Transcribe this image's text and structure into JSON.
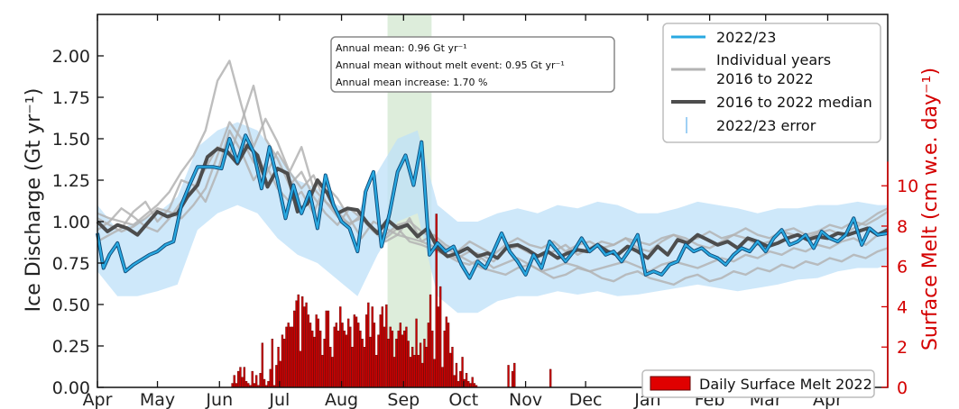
{
  "chart_data": {
    "type": "line",
    "xlabel": "",
    "ylabel": "Ice Discharge (Gt yr⁻¹)",
    "ylabel_right": "Surface Melt (cm w.e. day⁻¹)",
    "x_tick_labels": [
      "Apr",
      "May",
      "Jun",
      "Jul",
      "Aug",
      "Sep",
      "Oct",
      "Nov",
      "Dec",
      "Jan",
      "Feb",
      "Mar",
      "Apr"
    ],
    "y_ticks": [
      "0.00",
      "0.25",
      "0.50",
      "0.75",
      "1.00",
      "1.25",
      "1.50",
      "1.75",
      "2.00"
    ],
    "y_ticks_right": [
      "0",
      "2",
      "4",
      "6",
      "8",
      "10"
    ],
    "ylim": [
      0,
      2.25
    ],
    "ylim_right": [
      0,
      18.5
    ],
    "xlim_days": [
      0,
      395
    ],
    "highlight_window": {
      "start_day": 145,
      "end_day": 167,
      "color": "#cfe6cc"
    },
    "annotation": {
      "line1": "Annual mean: 0.96  Gt yr⁻¹",
      "line2": "Annual mean without melt event: 0.95  Gt yr⁻¹",
      "line3": "Annual mean increase: 1.70 %"
    },
    "legend": {
      "placement": "top-right",
      "items": [
        "2022/23",
        "Individual years",
        "2016 to 2022",
        "2016 to 2022 median",
        "2022/23 error"
      ]
    },
    "melt_legend": {
      "label": "Daily Surface Melt 2022",
      "placement": "bottom-right"
    },
    "colors": {
      "series_2022": "#29a9e1",
      "error": "#9fd0f4",
      "individual": "#b3b3b3",
      "median": "#4d4d4d",
      "melt": "#cc0000"
    },
    "series": [
      {
        "name": "2022/23",
        "x": [
          0,
          3,
          6,
          10,
          14,
          18,
          22,
          26,
          30,
          34,
          38,
          42,
          46,
          50,
          54,
          58,
          62,
          66,
          70,
          74,
          78,
          82,
          86,
          90,
          94,
          98,
          102,
          106,
          110,
          114,
          118,
          122,
          126,
          130,
          134,
          138,
          142,
          146,
          150,
          154,
          158,
          162,
          166,
          170,
          174,
          178,
          182,
          186,
          190,
          194,
          198,
          202,
          206,
          210,
          214,
          218,
          222,
          226,
          230,
          234,
          238,
          242,
          246,
          250,
          254,
          258,
          262,
          266,
          270,
          274,
          278,
          282,
          286,
          290,
          294,
          298,
          302,
          306,
          310,
          314,
          318,
          322,
          326,
          330,
          334,
          338,
          342,
          346,
          350,
          354,
          358,
          362,
          366,
          370,
          374,
          378,
          382,
          386,
          390,
          395
        ],
        "y": [
          0.93,
          0.72,
          0.8,
          0.87,
          0.7,
          0.74,
          0.77,
          0.8,
          0.82,
          0.86,
          0.88,
          1.1,
          1.22,
          1.33,
          1.33,
          1.33,
          1.32,
          1.5,
          1.36,
          1.52,
          1.42,
          1.2,
          1.45,
          1.25,
          1.02,
          1.22,
          1.05,
          1.18,
          0.96,
          1.28,
          1.1,
          1.0,
          0.96,
          0.82,
          1.18,
          1.3,
          0.85,
          1.05,
          1.3,
          1.4,
          1.22,
          1.48,
          0.8,
          0.87,
          0.82,
          0.85,
          0.74,
          0.66,
          0.76,
          0.72,
          0.82,
          0.93,
          0.82,
          0.76,
          0.68,
          0.8,
          0.72,
          0.88,
          0.82,
          0.76,
          0.82,
          0.9,
          0.82,
          0.86,
          0.8,
          0.82,
          0.76,
          0.83,
          0.92,
          0.68,
          0.7,
          0.68,
          0.74,
          0.76,
          0.86,
          0.82,
          0.84,
          0.8,
          0.78,
          0.74,
          0.8,
          0.84,
          0.82,
          0.88,
          0.82,
          0.9,
          0.95,
          0.86,
          0.88,
          0.92,
          0.84,
          0.94,
          0.9,
          0.88,
          0.92,
          1.02,
          0.86,
          0.96,
          0.92,
          0.93
        ]
      },
      {
        "name": "2016 to 2022 median",
        "x": [
          0,
          5,
          10,
          15,
          20,
          25,
          30,
          35,
          40,
          45,
          50,
          55,
          60,
          65,
          70,
          75,
          80,
          85,
          90,
          95,
          100,
          105,
          110,
          115,
          120,
          125,
          130,
          135,
          140,
          145,
          150,
          155,
          160,
          165,
          170,
          175,
          180,
          185,
          190,
          195,
          200,
          205,
          210,
          215,
          220,
          225,
          230,
          235,
          240,
          245,
          250,
          255,
          260,
          265,
          270,
          275,
          280,
          285,
          290,
          295,
          300,
          305,
          310,
          315,
          320,
          325,
          330,
          335,
          340,
          345,
          350,
          355,
          360,
          365,
          370,
          375,
          380,
          385,
          390,
          395
        ],
        "y": [
          1.0,
          0.94,
          0.98,
          0.96,
          0.92,
          0.99,
          1.06,
          1.03,
          1.05,
          1.15,
          1.22,
          1.39,
          1.44,
          1.42,
          1.35,
          1.46,
          1.4,
          1.21,
          1.32,
          1.29,
          1.06,
          1.11,
          1.25,
          1.17,
          1.05,
          1.08,
          1.07,
          0.99,
          0.93,
          1.01,
          0.96,
          0.98,
          0.91,
          0.96,
          0.84,
          0.79,
          0.81,
          0.84,
          0.79,
          0.81,
          0.78,
          0.85,
          0.86,
          0.83,
          0.79,
          0.82,
          0.78,
          0.81,
          0.83,
          0.82,
          0.86,
          0.82,
          0.8,
          0.85,
          0.82,
          0.78,
          0.85,
          0.8,
          0.89,
          0.87,
          0.92,
          0.89,
          0.86,
          0.88,
          0.84,
          0.9,
          0.88,
          0.85,
          0.87,
          0.9,
          0.92,
          0.89,
          0.91,
          0.9,
          0.93,
          0.92,
          0.94,
          0.96,
          0.92,
          0.95
        ]
      }
    ],
    "individual_years": [
      {
        "x": [
          0,
          6,
          12,
          18,
          24,
          30,
          36,
          42,
          48,
          54,
          60,
          66,
          72,
          78,
          84,
          90,
          96,
          102,
          108,
          114,
          120,
          126,
          132,
          138,
          144,
          150,
          156,
          162,
          168,
          174,
          180,
          186,
          192,
          198,
          204,
          210,
          216,
          222,
          228,
          234,
          240,
          246,
          252,
          258,
          264,
          270,
          276,
          282,
          288,
          294,
          300,
          306,
          312,
          318,
          324,
          330,
          336,
          342,
          348,
          354,
          360,
          366,
          372,
          378,
          384,
          390,
          395
        ],
        "y": [
          1.05,
          1.02,
          1.0,
          0.98,
          1.04,
          1.1,
          1.18,
          1.3,
          1.4,
          1.55,
          1.85,
          1.97,
          1.7,
          1.45,
          1.62,
          1.48,
          1.3,
          1.45,
          1.2,
          1.12,
          1.03,
          0.99,
          1.02,
          0.94,
          0.88,
          0.92,
          0.9,
          0.88,
          0.85,
          0.8,
          0.78,
          0.82,
          0.8,
          0.76,
          0.83,
          0.85,
          0.81,
          0.79,
          0.82,
          0.86,
          0.8,
          0.84,
          0.88,
          0.86,
          0.9,
          0.84,
          0.82,
          0.88,
          0.92,
          0.9,
          0.86,
          0.84,
          0.88,
          0.92,
          0.9,
          0.86,
          0.88,
          0.94,
          0.92,
          0.9,
          0.93,
          0.95,
          0.92,
          0.96,
          1.0,
          1.05,
          1.08
        ]
      },
      {
        "x": [
          0,
          6,
          12,
          18,
          24,
          30,
          36,
          42,
          48,
          54,
          60,
          66,
          72,
          78,
          84,
          90,
          96,
          102,
          108,
          114,
          120,
          126,
          132,
          138,
          144,
          150,
          156,
          162,
          168,
          174,
          180,
          186,
          192,
          198,
          204,
          210,
          216,
          222,
          228,
          234,
          240,
          246,
          252,
          258,
          264,
          270,
          276,
          282,
          288,
          294,
          300,
          306,
          312,
          318,
          324,
          330,
          336,
          342,
          348,
          354,
          360,
          366,
          372,
          378,
          384,
          390,
          395
        ],
        "y": [
          0.95,
          1.0,
          1.08,
          1.03,
          0.97,
          0.94,
          1.02,
          1.12,
          1.2,
          1.32,
          1.45,
          1.4,
          1.6,
          1.82,
          1.5,
          1.38,
          1.22,
          1.3,
          1.15,
          1.05,
          0.98,
          1.08,
          1.02,
          0.95,
          0.9,
          0.96,
          0.88,
          0.86,
          0.83,
          0.8,
          0.76,
          0.74,
          0.78,
          0.72,
          0.75,
          0.78,
          0.74,
          0.7,
          0.72,
          0.75,
          0.73,
          0.7,
          0.72,
          0.74,
          0.76,
          0.73,
          0.7,
          0.74,
          0.76,
          0.74,
          0.72,
          0.75,
          0.78,
          0.76,
          0.8,
          0.78,
          0.82,
          0.8,
          0.84,
          0.82,
          0.86,
          0.84,
          0.88,
          0.9,
          0.86,
          0.92,
          0.95
        ]
      },
      {
        "x": [
          0,
          6,
          12,
          18,
          24,
          30,
          36,
          42,
          48,
          54,
          60,
          66,
          72,
          78,
          84,
          90,
          96,
          102,
          108,
          114,
          120,
          126,
          132,
          138,
          144,
          150,
          156,
          162,
          168,
          174,
          180,
          186,
          192,
          198,
          204,
          210,
          216,
          222,
          228,
          234,
          240,
          246,
          252,
          258,
          264,
          270,
          276,
          282,
          288,
          294,
          300,
          306,
          312,
          318,
          324,
          330,
          336,
          342,
          348,
          354,
          360,
          366,
          372,
          378,
          384,
          390,
          395
        ],
        "y": [
          0.88,
          0.92,
          0.96,
          1.06,
          1.12,
          1.0,
          1.08,
          1.25,
          1.22,
          1.12,
          1.3,
          1.55,
          1.42,
          1.25,
          1.35,
          1.2,
          1.12,
          1.18,
          1.05,
          1.22,
          1.14,
          1.02,
          0.9,
          1.0,
          0.96,
          0.92,
          1.02,
          0.88,
          0.92,
          0.86,
          0.82,
          0.88,
          0.84,
          0.8,
          0.86,
          0.9,
          0.86,
          0.84,
          0.88,
          0.82,
          0.86,
          0.88,
          0.84,
          0.86,
          0.9,
          0.88,
          0.86,
          0.9,
          0.92,
          0.88,
          0.9,
          0.94,
          0.9,
          0.92,
          0.96,
          0.92,
          0.9,
          0.94,
          0.96,
          0.92,
          0.94,
          0.98,
          0.96,
          1.0,
          0.98,
          1.02,
          1.06
        ]
      },
      {
        "x": [
          0,
          6,
          12,
          18,
          24,
          30,
          36,
          42,
          48,
          54,
          60,
          66,
          72,
          78,
          84,
          90,
          96,
          102,
          108,
          114,
          120,
          126,
          132,
          138,
          144,
          150,
          156,
          162,
          168,
          174,
          180,
          186,
          192,
          198,
          204,
          210,
          216,
          222,
          228,
          234,
          240,
          246,
          252,
          258,
          264,
          270,
          276,
          282,
          288,
          294,
          300,
          306,
          312,
          318,
          324,
          330,
          336,
          342,
          348,
          354,
          360,
          366,
          372,
          378,
          384,
          390,
          395
        ],
        "y": [
          1.02,
          0.98,
          0.94,
          0.97,
          1.02,
          1.08,
          1.06,
          1.02,
          1.1,
          1.2,
          1.4,
          1.6,
          1.5,
          1.36,
          1.28,
          1.42,
          1.3,
          1.2,
          1.28,
          1.12,
          1.06,
          0.98,
          1.04,
          0.96,
          0.92,
          0.98,
          1.0,
          0.94,
          0.9,
          0.84,
          0.8,
          0.76,
          0.72,
          0.7,
          0.68,
          0.72,
          0.74,
          0.7,
          0.66,
          0.68,
          0.72,
          0.7,
          0.66,
          0.64,
          0.68,
          0.7,
          0.66,
          0.64,
          0.62,
          0.66,
          0.68,
          0.64,
          0.66,
          0.7,
          0.68,
          0.72,
          0.7,
          0.74,
          0.72,
          0.76,
          0.74,
          0.78,
          0.76,
          0.8,
          0.78,
          0.82,
          0.84
        ]
      }
    ],
    "error_band": {
      "x": [
        0,
        10,
        20,
        30,
        40,
        50,
        60,
        70,
        80,
        90,
        100,
        110,
        120,
        130,
        140,
        150,
        160,
        170,
        180,
        190,
        200,
        210,
        220,
        230,
        240,
        250,
        260,
        270,
        280,
        290,
        300,
        310,
        320,
        330,
        340,
        350,
        360,
        370,
        380,
        390,
        395
      ],
      "upper": [
        1.1,
        0.95,
        1.0,
        1.05,
        1.15,
        1.45,
        1.55,
        1.6,
        1.55,
        1.4,
        1.25,
        1.2,
        1.1,
        1.05,
        1.3,
        1.5,
        1.55,
        1.1,
        1.0,
        1.0,
        1.05,
        1.08,
        1.05,
        1.1,
        1.08,
        1.12,
        1.1,
        1.05,
        1.05,
        1.08,
        1.12,
        1.1,
        1.08,
        1.05,
        1.08,
        1.08,
        1.1,
        1.1,
        1.12,
        1.1,
        1.1
      ],
      "lower": [
        0.7,
        0.55,
        0.55,
        0.58,
        0.62,
        0.95,
        1.05,
        1.1,
        1.05,
        0.9,
        0.8,
        0.75,
        0.65,
        0.55,
        0.8,
        1.0,
        1.05,
        0.55,
        0.45,
        0.45,
        0.52,
        0.55,
        0.55,
        0.58,
        0.56,
        0.58,
        0.55,
        0.56,
        0.58,
        0.6,
        0.62,
        0.6,
        0.58,
        0.6,
        0.62,
        0.65,
        0.66,
        0.7,
        0.72,
        0.72,
        0.74
      ]
    },
    "melt_bars": {
      "start_day": 67,
      "values": [
        0.2,
        0.6,
        0.2,
        0.8,
        1.0,
        0.5,
        1.0,
        0.3,
        0.2,
        0.1,
        0.8,
        0.2,
        0.6,
        0.1,
        0.7,
        2.2,
        0.4,
        0.1,
        0.3,
        0.9,
        2.4,
        0.1,
        1.1,
        2.0,
        1.3,
        2.6,
        2.4,
        3.0,
        3.2,
        3.0,
        3.0,
        3.8,
        4.3,
        4.6,
        1.8,
        4.5,
        4.0,
        4.2,
        3.6,
        3.2,
        2.8,
        2.5,
        3.6,
        3.4,
        2.8,
        1.6,
        2.4,
        3.8,
        3.8,
        2.0,
        1.5,
        3.0,
        3.2,
        2.8,
        4.0,
        3.2,
        2.8,
        2.6,
        3.4,
        3.0,
        2.0,
        3.6,
        3.5,
        3.2,
        2.8,
        2.4,
        2.0,
        3.6,
        4.2,
        2.5,
        4.0,
        3.2,
        1.6,
        2.6,
        3.6,
        4.0,
        3.0,
        4.1,
        2.4,
        3.0,
        2.8,
        1.5,
        2.4,
        2.8,
        3.2,
        2.6,
        2.8,
        3.0,
        2.3,
        1.5,
        2.0,
        1.6,
        3.4,
        1.6,
        2.2,
        1.2,
        2.4,
        2.0,
        3.2,
        4.6,
        2.8,
        1.4,
        8.6,
        4.0,
        5.0,
        1.0,
        2.8,
        3.5,
        3.2,
        1.7,
        2.0,
        0.6,
        1.2,
        0.3,
        0.8,
        1.5,
        0.4,
        0.7,
        0.3,
        0.2,
        0.5,
        0.2,
        0.1,
        0.0,
        0.0,
        0.0,
        0.0,
        0.0,
        0.0,
        0.0,
        0.0,
        0.0,
        0.0,
        0.0,
        0.0,
        0.0,
        0.0,
        0.0,
        1.1,
        0.0,
        0.8,
        1.2,
        0.0,
        0.0,
        0.0,
        0.0,
        0.0,
        0.0,
        0.0,
        0.0,
        0.0,
        0.0,
        0.0,
        0.0,
        0.0,
        0.0,
        0.0,
        0.0,
        0.0,
        0.9
      ]
    }
  }
}
